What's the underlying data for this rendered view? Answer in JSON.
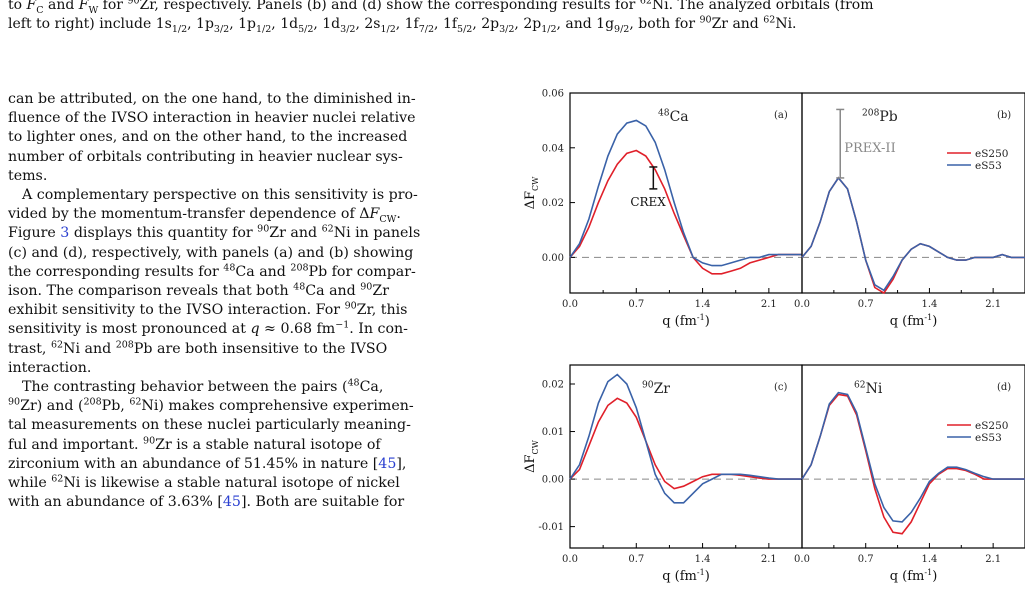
{
  "caption": {
    "line1_html": "to <i>F</i><sub>C</sub> and <i>F</i><sub>W</sub> for <sup>90</sup>Zr, respectively. Panels (b) and (d) show the corresponding results for <sup>62</sup>Ni. The analyzed orbitals (from",
    "line2_html": "left to right) include 1s<sub>1/2</sub>, 1p<sub>3/2</sub>, 1p<sub>1/2</sub>, 1d<sub>5/2</sub>, 1d<sub>3/2</sub>, 2s<sub>1/2</sub>, 1f<sub>7/2</sub>, 1f<sub>5/2</sub>, 2p<sub>3/2</sub>, 2p<sub>1/2</sub>, and 1g<sub>9/2</sub>, both for <sup>90</sup>Zr and <sup>62</sup>Ni."
  },
  "body": {
    "paragraph1_html": "can be attributed, on the one hand, to the diminished in-<br>fluence of the IVSO interaction in heavier nuclei relative<br>to lighter ones, and on the other hand, to the increased<br>number of orbitals contributing in heavier nuclear sys-<br>tems.",
    "paragraph2_html": "A complementary perspective on this sensitivity is pro-<br>vided by the momentum-transfer dependence of Δ<i>F</i><sub>CW</sub>.<br>Figure <span class=\"link\">3</span> displays this quantity for <sup>90</sup>Zr and <sup>62</sup>Ni in panels<br>(c) and (d), respectively, with panels (a) and (b) showing<br>the corresponding results for <sup>48</sup>Ca and <sup>208</sup>Pb for compar-<br>ison.  The comparison reveals that both <sup>48</sup>Ca and <sup>90</sup>Zr<br>exhibit sensitivity to the IVSO interaction. For <sup>90</sup>Zr, this<br>sensitivity is most pronounced at <i>q</i> ≈ 0.68 fm<sup>−1</sup>. In con-<br>trast, <sup>62</sup>Ni and <sup>208</sup>Pb are both insensitive to the IVSO<br>interaction.",
    "paragraph3_html": "The contrasting behavior between the pairs (<sup>48</sup>Ca,<br><sup>90</sup>Zr) and (<sup>208</sup>Pb, <sup>62</sup>Ni) makes comprehensive experimen-<br>tal measurements on these nuclei particularly meaning-<br>ful and important.  <sup>90</sup>Zr is a stable natural isotope of<br>zirconium with an abundance of 51.45% in nature [<span class=\"link\">45</span>],<br>while <sup>62</sup>Ni is likewise a stable natural isotope of nickel<br>with an abundance of 3.63% [<span class=\"link\">45</span>].  Both are suitable for"
  },
  "chart_data": [
    {
      "type": "line",
      "panel": "(a)",
      "nucleus": "48Ca",
      "xlabel": "q  (fm-1)",
      "ylabel": "ΔF_CW",
      "xlim": [
        0,
        2.45
      ],
      "ylim": [
        -0.013,
        0.06
      ],
      "xticks": [
        "0.0",
        "0.7",
        "1.4",
        "2.1"
      ],
      "yticks": [
        "0.00",
        "0.02",
        "0.04",
        "0.06"
      ],
      "annotation": "CREX",
      "error_bar": {
        "q": 0.88,
        "low": 0.025,
        "high": 0.033
      },
      "series": [
        {
          "name": "eS250",
          "color": "#e0202a",
          "x": [
            0,
            0.1,
            0.2,
            0.3,
            0.4,
            0.5,
            0.6,
            0.7,
            0.8,
            0.9,
            1.0,
            1.1,
            1.2,
            1.3,
            1.4,
            1.5,
            1.6,
            1.7,
            1.8,
            1.9,
            2.0,
            2.1,
            2.2,
            2.3,
            2.45
          ],
          "y": [
            0,
            0.004,
            0.011,
            0.02,
            0.028,
            0.034,
            0.038,
            0.039,
            0.037,
            0.032,
            0.025,
            0.016,
            0.008,
            0.0,
            -0.004,
            -0.006,
            -0.006,
            -0.005,
            -0.004,
            -0.002,
            -0.001,
            0.0,
            0.001,
            0.001,
            0.001
          ]
        },
        {
          "name": "eS53",
          "color": "#3a62a8",
          "x": [
            0,
            0.1,
            0.2,
            0.3,
            0.4,
            0.5,
            0.6,
            0.7,
            0.8,
            0.9,
            1.0,
            1.1,
            1.2,
            1.3,
            1.4,
            1.5,
            1.6,
            1.7,
            1.8,
            1.9,
            2.0,
            2.1,
            2.2,
            2.3,
            2.45
          ],
          "y": [
            0,
            0.005,
            0.014,
            0.026,
            0.037,
            0.045,
            0.049,
            0.05,
            0.048,
            0.042,
            0.032,
            0.02,
            0.009,
            0.0,
            -0.002,
            -0.003,
            -0.003,
            -0.002,
            -0.001,
            0.0,
            0.0,
            0.001,
            0.001,
            0.001,
            0.001
          ]
        }
      ]
    },
    {
      "type": "line",
      "panel": "(b)",
      "nucleus": "208Pb",
      "xlabel": "q  (fm-1)",
      "ylabel": "",
      "xlim": [
        0,
        2.45
      ],
      "ylim": [
        -0.013,
        0.06
      ],
      "xticks": [
        "0.0",
        "0.7",
        "1.4",
        "2.1"
      ],
      "yticks": [],
      "annotation": "PREX-II",
      "error_bar": {
        "q": 0.42,
        "low": 0.029,
        "high": 0.054
      },
      "legend": [
        "eS250",
        "eS53"
      ],
      "legend_position": "top-right",
      "series": [
        {
          "name": "eS250",
          "color": "#e0202a",
          "x": [
            0,
            0.1,
            0.2,
            0.3,
            0.4,
            0.5,
            0.6,
            0.7,
            0.8,
            0.9,
            1.0,
            1.1,
            1.2,
            1.3,
            1.4,
            1.5,
            1.6,
            1.7,
            1.8,
            1.9,
            2.0,
            2.1,
            2.2,
            2.3,
            2.45
          ],
          "y": [
            0,
            0.004,
            0.013,
            0.024,
            0.029,
            0.025,
            0.013,
            -0.001,
            -0.011,
            -0.013,
            -0.008,
            -0.001,
            0.003,
            0.005,
            0.004,
            0.002,
            0.0,
            -0.001,
            -0.001,
            0.0,
            0.0,
            0.0,
            0.001,
            0.0,
            0.0
          ]
        },
        {
          "name": "eS53",
          "color": "#3a62a8",
          "x": [
            0,
            0.1,
            0.2,
            0.3,
            0.4,
            0.5,
            0.6,
            0.7,
            0.8,
            0.9,
            1.0,
            1.1,
            1.2,
            1.3,
            1.4,
            1.5,
            1.6,
            1.7,
            1.8,
            1.9,
            2.0,
            2.1,
            2.2,
            2.3,
            2.45
          ],
          "y": [
            0,
            0.004,
            0.013,
            0.024,
            0.029,
            0.025,
            0.013,
            -0.001,
            -0.01,
            -0.012,
            -0.007,
            -0.001,
            0.003,
            0.005,
            0.004,
            0.002,
            0.0,
            -0.001,
            -0.001,
            0.0,
            0.0,
            0.0,
            0.001,
            0.0,
            0.0
          ]
        }
      ]
    },
    {
      "type": "line",
      "panel": "(c)",
      "nucleus": "90Zr",
      "xlabel": "q  (fm-1)",
      "ylabel": "ΔF_CW",
      "xlim": [
        0,
        2.45
      ],
      "ylim": [
        -0.0145,
        0.024
      ],
      "xticks": [
        "0.0",
        "0.7",
        "1.4",
        "2.1"
      ],
      "yticks": [
        "-0.01",
        "0.00",
        "0.01",
        "0.02"
      ],
      "series": [
        {
          "name": "eS250",
          "color": "#e0202a",
          "x": [
            0,
            0.1,
            0.2,
            0.3,
            0.4,
            0.5,
            0.6,
            0.7,
            0.8,
            0.9,
            1.0,
            1.1,
            1.2,
            1.3,
            1.4,
            1.5,
            1.6,
            1.7,
            1.8,
            1.9,
            2.0,
            2.1,
            2.2,
            2.3,
            2.45
          ],
          "y": [
            0,
            0.002,
            0.007,
            0.012,
            0.0155,
            0.017,
            0.016,
            0.013,
            0.008,
            0.003,
            -0.0005,
            -0.002,
            -0.0015,
            -0.0005,
            0.0005,
            0.001,
            0.001,
            0.001,
            0.0008,
            0.0005,
            0.0002,
            0.0,
            0.0,
            0.0,
            0.0
          ]
        },
        {
          "name": "eS53",
          "color": "#3a62a8",
          "x": [
            0,
            0.1,
            0.2,
            0.3,
            0.4,
            0.5,
            0.6,
            0.7,
            0.8,
            0.9,
            1.0,
            1.1,
            1.2,
            1.3,
            1.4,
            1.5,
            1.6,
            1.7,
            1.8,
            1.9,
            2.0,
            2.1,
            2.2,
            2.3,
            2.45
          ],
          "y": [
            0,
            0.003,
            0.009,
            0.016,
            0.0205,
            0.022,
            0.02,
            0.015,
            0.008,
            0.001,
            -0.003,
            -0.005,
            -0.005,
            -0.003,
            -0.001,
            0.0,
            0.001,
            0.001,
            0.001,
            0.0008,
            0.0005,
            0.0002,
            0.0,
            0.0,
            0.0
          ]
        }
      ]
    },
    {
      "type": "line",
      "panel": "(d)",
      "nucleus": "62Ni",
      "xlabel": "q  (fm-1)",
      "ylabel": "",
      "xlim": [
        0,
        2.45
      ],
      "ylim": [
        -0.0145,
        0.024
      ],
      "xticks": [
        "0.0",
        "0.7",
        "1.4",
        "2.1"
      ],
      "yticks": [],
      "legend": [
        "eS250",
        "eS53"
      ],
      "legend_position": "top-right",
      "series": [
        {
          "name": "eS250",
          "color": "#e0202a",
          "x": [
            0,
            0.1,
            0.2,
            0.3,
            0.4,
            0.5,
            0.6,
            0.7,
            0.8,
            0.9,
            1.0,
            1.1,
            1.2,
            1.3,
            1.4,
            1.5,
            1.6,
            1.7,
            1.8,
            1.9,
            2.0,
            2.1,
            2.2,
            2.3,
            2.45
          ],
          "y": [
            0,
            0.003,
            0.009,
            0.0155,
            0.0178,
            0.0175,
            0.0135,
            0.006,
            -0.002,
            -0.008,
            -0.0112,
            -0.0115,
            -0.009,
            -0.005,
            -0.001,
            0.001,
            0.0022,
            0.0022,
            0.0018,
            0.001,
            0.0,
            0.0,
            0.0,
            0.0,
            0.0
          ]
        },
        {
          "name": "eS53",
          "color": "#3a62a8",
          "x": [
            0,
            0.1,
            0.2,
            0.3,
            0.4,
            0.5,
            0.6,
            0.7,
            0.8,
            0.9,
            1.0,
            1.1,
            1.2,
            1.3,
            1.4,
            1.5,
            1.6,
            1.7,
            1.8,
            1.9,
            2.0,
            2.1,
            2.2,
            2.3,
            2.45
          ],
          "y": [
            0,
            0.003,
            0.009,
            0.0158,
            0.0182,
            0.0178,
            0.014,
            0.0065,
            -0.001,
            -0.006,
            -0.0088,
            -0.009,
            -0.007,
            -0.004,
            -0.0005,
            0.0012,
            0.0025,
            0.0025,
            0.002,
            0.0012,
            0.0005,
            0.0,
            0.0,
            0.0,
            0.0
          ]
        }
      ]
    }
  ]
}
